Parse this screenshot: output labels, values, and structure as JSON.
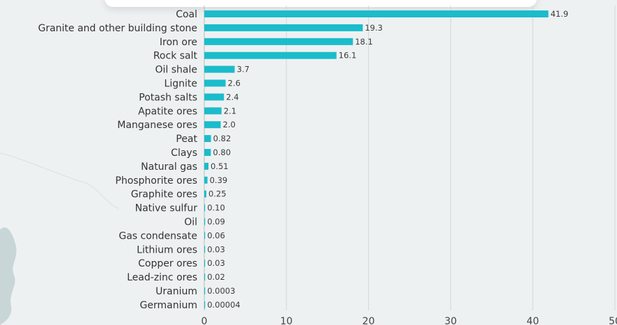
{
  "chart_data": {
    "type": "bar",
    "orientation": "horizontal",
    "title": "",
    "xlabel": "",
    "ylabel": "",
    "xlim": [
      0,
      50
    ],
    "x_ticks": [
      "0",
      "10",
      "20",
      "30",
      "40",
      "50"
    ],
    "grid": "vertical",
    "bar_color": "#1bbccb",
    "categories": [
      "Coal",
      "Granite and other building stone",
      "Iron ore",
      "Rock salt",
      "Oil shale",
      "Lignite",
      "Potash salts",
      "Apatite ores",
      "Manganese ores",
      "Peat",
      "Clays",
      "Natural gas",
      "Phosphorite ores",
      "Graphite ores",
      "Native sulfur",
      "Oil",
      "Gas condensate",
      "Lithium ores",
      "Copper ores",
      "Lead-zinc ores",
      "Uranium",
      "Germanium"
    ],
    "values": [
      41.9,
      19.3,
      18.1,
      16.1,
      3.7,
      2.6,
      2.4,
      2.1,
      2.0,
      0.82,
      0.8,
      0.51,
      0.39,
      0.25,
      0.1,
      0.09,
      0.06,
      0.03,
      0.03,
      0.02,
      0.0003,
      4e-05
    ],
    "value_labels": [
      "41.9",
      "19.3",
      "18.1",
      "16.1",
      "3.7",
      "2.6",
      "2.4",
      "2.1",
      "2.0",
      "0.82",
      "0.80",
      "0.51",
      "0.39",
      "0.25",
      "0.10",
      "0.09",
      "0.06",
      "0.03",
      "0.03",
      "0.02",
      "0.0003",
      "0.00004"
    ]
  }
}
